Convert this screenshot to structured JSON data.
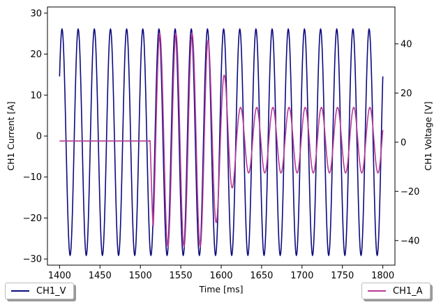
{
  "chart_data": {
    "type": "line",
    "xlabel": "Time [ms]",
    "ylabel_left": "CH1 Current [A]",
    "ylabel_right": "CH1 Voltage [V]",
    "xlim": [
      1385,
      1815
    ],
    "ylim_left": [
      -31.5,
      31.5
    ],
    "ylim_right": [
      -50,
      55
    ],
    "x_ticks": [
      1400,
      1450,
      1500,
      1550,
      1600,
      1650,
      1700,
      1750,
      1800
    ],
    "y_left_ticks": [
      -30,
      -20,
      -10,
      0,
      10,
      20,
      30
    ],
    "y_right_ticks": [
      -40,
      -20,
      0,
      20,
      40
    ],
    "grid": false,
    "series": [
      {
        "name": "CH1_V",
        "axis": "right",
        "color": "#0c0a7e",
        "description": "sinusoid, ~50 Hz",
        "frequency_hz": 50,
        "amplitude": 46,
        "x_start": 1400,
        "x_end": 1800
      },
      {
        "name": "CH1_A",
        "axis": "left",
        "color": "#b83a96",
        "segments": [
          {
            "x_start": 1400,
            "x_end": 1512,
            "value": -1.2
          },
          {
            "x_start": 1512,
            "x_end": 1580,
            "amplitude": 26,
            "frequency_hz": 50
          },
          {
            "x_start": 1580,
            "x_end": 1620,
            "amplitude_from": 26,
            "amplitude_to": 9,
            "frequency_hz": 50
          },
          {
            "x_start": 1620,
            "x_end": 1800,
            "amplitude": 8,
            "frequency_hz": 50
          }
        ],
        "peak_points": [
          [
            1519,
            28.5
          ],
          [
            1529,
            -28.5
          ],
          [
            1538,
            25.5
          ],
          [
            1548,
            -26
          ],
          [
            1558,
            26.5
          ],
          [
            1568,
            -23
          ],
          [
            1578,
            22
          ],
          [
            1588,
            -15
          ],
          [
            1598,
            15
          ],
          [
            1608,
            -11
          ],
          [
            1618,
            10
          ]
        ]
      }
    ],
    "legend": [
      "bottom-left: CH1_V",
      "bottom-right: CH1_A"
    ]
  }
}
